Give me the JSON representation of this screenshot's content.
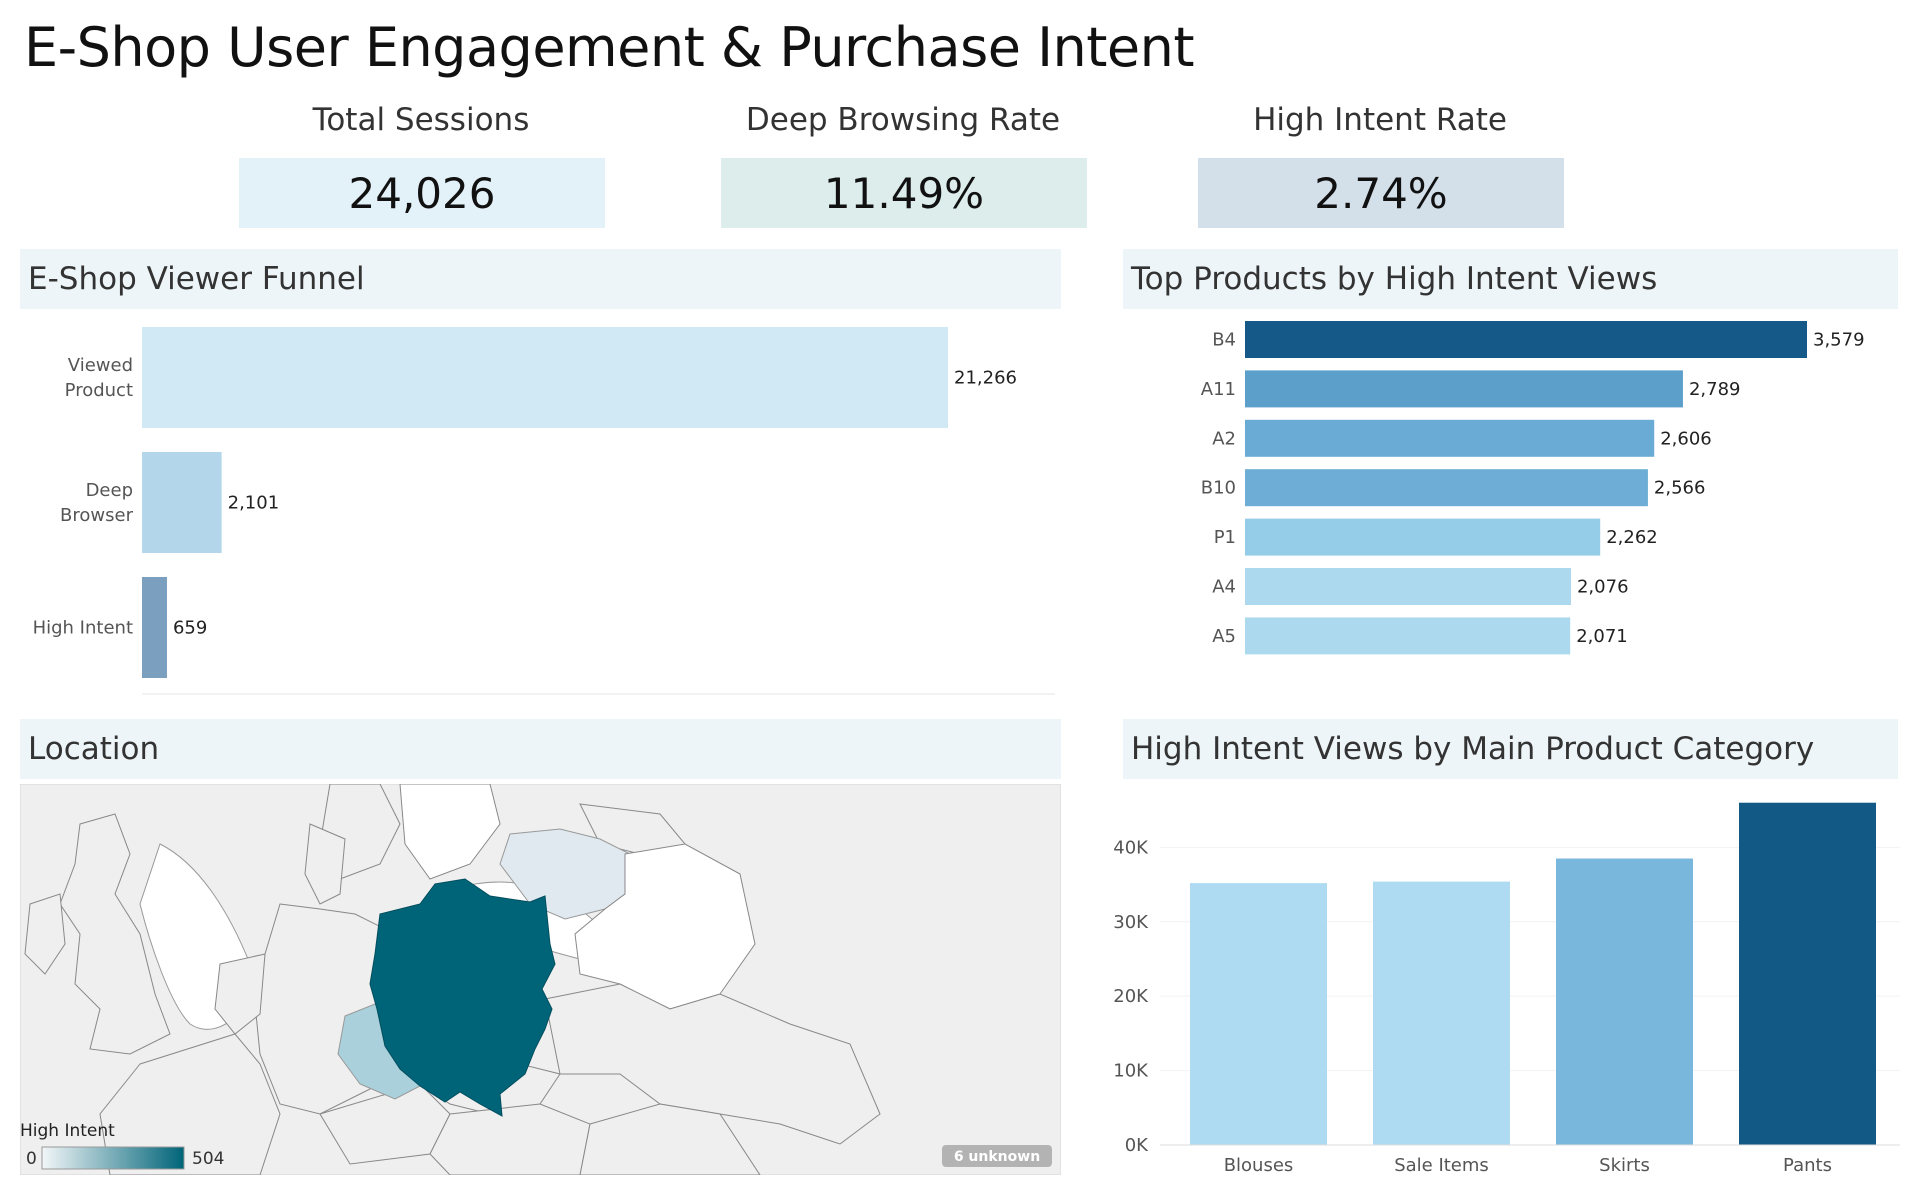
{
  "title": "E-Shop User Engagement & Purchase Intent",
  "kpis": [
    {
      "label": "Total Sessions",
      "value": "24,026",
      "color": "#e3f1f8"
    },
    {
      "label": "Deep Browsing Rate",
      "value": "11.49%",
      "color": "#dcedec"
    },
    {
      "label": "High Intent Rate",
      "value": "2.74%",
      "color": "#d3dfe9"
    }
  ],
  "panels": {
    "funnel_title": "E-Shop Viewer Funnel",
    "products_title": "Top Products by High Intent Views",
    "location_title": "Location",
    "category_title": "High Intent Views by Main Product Category"
  },
  "map": {
    "legend_title": "High Intent",
    "legend_min": "0",
    "legend_max": "504",
    "unknown_badge": "6 unknown",
    "colors": {
      "low": "#f2f6f8",
      "high": "#006478",
      "background": "#efefef",
      "border": "#888888"
    }
  },
  "chart_data": [
    {
      "type": "bar",
      "orientation": "horizontal",
      "categories": [
        "Viewed Product",
        "Deep Browser",
        "High Intent"
      ],
      "label_lines": [
        [
          "Viewed",
          "Product"
        ],
        [
          "Deep",
          "Browser"
        ],
        [
          "High Intent"
        ]
      ],
      "values": [
        21266,
        2101,
        659
      ],
      "value_labels": [
        "21,266",
        "2,101",
        "659"
      ],
      "colors": [
        "#d1e9f5",
        "#b3d6eb",
        "#7b9fbe"
      ]
    },
    {
      "type": "bar",
      "orientation": "horizontal",
      "categories": [
        "B4",
        "A11",
        "A2",
        "B10",
        "P1",
        "A4",
        "A5"
      ],
      "values": [
        3579,
        2789,
        2606,
        2566,
        2262,
        2076,
        2071
      ],
      "value_labels": [
        "3,579",
        "2,789",
        "2,606",
        "2,566",
        "2,262",
        "2,076",
        "2,071"
      ],
      "colors": [
        "#145987",
        "#5b9fca",
        "#69abd4",
        "#6eaed6",
        "#95cde9",
        "#add9ef",
        "#add9ef"
      ]
    },
    {
      "type": "bar",
      "categories": [
        "Blouses",
        "Sale Items",
        "Skirts",
        "Pants"
      ],
      "values": [
        35200,
        35400,
        38500,
        46000
      ],
      "ylim": [
        0,
        46500
      ],
      "yticks": [
        0,
        10000,
        20000,
        30000,
        40000
      ],
      "ytick_labels": [
        "0K",
        "10K",
        "20K",
        "30K",
        "40K"
      ],
      "colors": [
        "#aedbf1",
        "#aedbf1",
        "#79b7dc",
        "#135985"
      ]
    },
    {
      "type": "choropleth",
      "measure": "High Intent",
      "range": [
        0,
        504
      ],
      "regions": [
        {
          "name": "Poland",
          "value": 504
        },
        {
          "name": "Czech Republic",
          "value": 150
        },
        {
          "name": "Lithuania",
          "value": 60
        }
      ]
    }
  ]
}
